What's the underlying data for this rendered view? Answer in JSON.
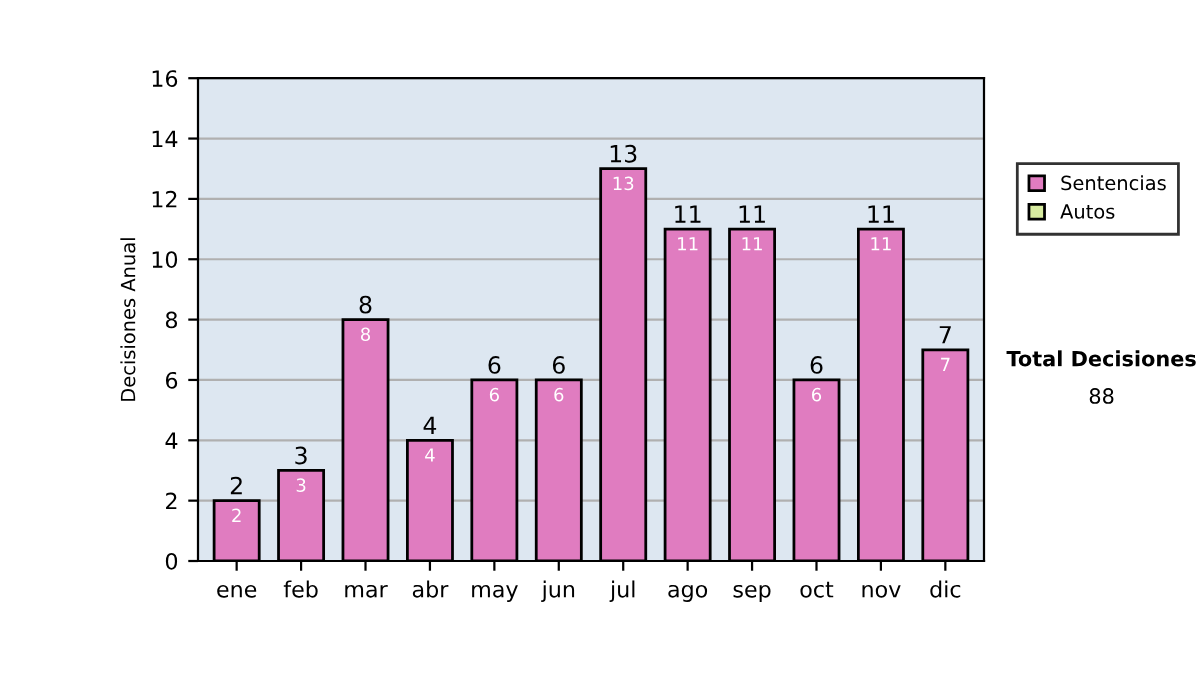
{
  "chart_data": {
    "type": "bar",
    "ylabel": "Decisiones Anual",
    "categories": [
      "ene",
      "feb",
      "mar",
      "abr",
      "may",
      "jun",
      "jul",
      "ago",
      "sep",
      "oct",
      "nov",
      "dic"
    ],
    "series": [
      {
        "name": "Sentencias",
        "color": "#e07cc0",
        "values": [
          2,
          3,
          8,
          4,
          6,
          6,
          13,
          11,
          11,
          6,
          11,
          7
        ]
      },
      {
        "name": "Autos",
        "color": "#d8eca0",
        "values": [
          null,
          null,
          null,
          null,
          null,
          null,
          null,
          null,
          null,
          null,
          null,
          null
        ]
      }
    ],
    "stacked": true,
    "data_labels": true,
    "totals": [
      "2",
      "3",
      "8",
      "4",
      "6",
      "6",
      "13",
      "11",
      "11",
      "6",
      "11",
      "7"
    ],
    "ylim": [
      0,
      16
    ],
    "yticks": [
      0,
      2,
      4,
      6,
      8,
      10,
      12,
      14,
      16
    ],
    "grid": "y",
    "legend": "right",
    "annotations": [
      "Total Decisiones",
      "88"
    ]
  }
}
